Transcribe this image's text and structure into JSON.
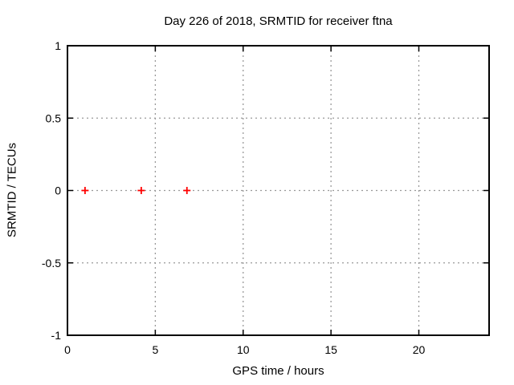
{
  "chart_data": {
    "type": "scatter",
    "title": "Day 226 of 2018, SRMTID for receiver ftna",
    "xlabel": "GPS time / hours",
    "ylabel": "SRMTID / TECUs",
    "xlim": [
      0,
      24
    ],
    "ylim": [
      -1,
      1
    ],
    "xticks": [
      0,
      5,
      10,
      15,
      20
    ],
    "yticks": [
      -1,
      -0.5,
      0,
      0.5,
      1
    ],
    "grid": true,
    "legend": "none",
    "series": [
      {
        "marker": "plus",
        "color": "#ff0000",
        "points": [
          [
            1.0,
            0
          ],
          [
            4.2,
            0
          ],
          [
            6.8,
            0
          ]
        ]
      }
    ],
    "colors": {
      "background": "#ffffff",
      "border": "#000000",
      "grid": "#999999",
      "text": "#000000",
      "marker": "#ff0000"
    }
  }
}
